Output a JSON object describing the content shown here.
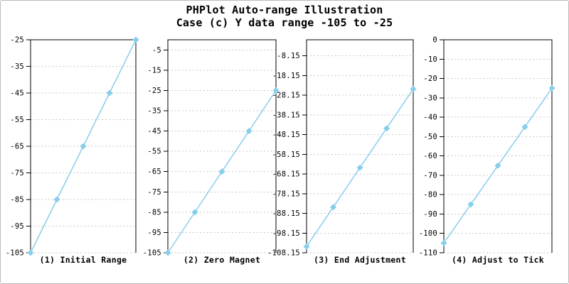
{
  "title": {
    "line1": "PHPlot Auto-range Illustration",
    "line2": "Case (c) Y data range -105 to -25"
  },
  "colors": {
    "line": "#87CEEB",
    "marker": "#87CEEB",
    "grid": "#C8C8C8",
    "axis": "#000000",
    "text": "#000000",
    "background": "#FFFFFF",
    "border": "#B9B9B9"
  },
  "chart_data": [
    {
      "type": "line",
      "title": "(1) Initial Range",
      "values": [
        -105,
        -85,
        -65,
        -45,
        -25
      ],
      "ylim": [
        -105,
        -25
      ],
      "yticks": [
        -25,
        -35,
        -45,
        -55,
        -65,
        -75,
        -85,
        -95,
        -105
      ],
      "xlabel": "",
      "ylabel": "",
      "grid": "horizontal-dashed",
      "marker": "diamond",
      "legend": null
    },
    {
      "type": "line",
      "title": "(2) Zero Magnet",
      "values": [
        -105,
        -85,
        -65,
        -45,
        -25
      ],
      "ylim": [
        -105,
        0
      ],
      "yticks": [
        -5,
        -15,
        -25,
        -35,
        -45,
        -55,
        -65,
        -75,
        -85,
        -95,
        -105
      ],
      "xlabel": "",
      "ylabel": "",
      "grid": "horizontal-dashed",
      "marker": "diamond",
      "legend": null
    },
    {
      "type": "line",
      "title": "(3) End Adjustment",
      "values": [
        -105,
        -85,
        -65,
        -45,
        -25
      ],
      "ylim": [
        -108.15,
        0
      ],
      "yticks": [
        -8.15,
        -18.15,
        -28.15,
        -38.15,
        -48.15,
        -58.15,
        -68.15,
        -78.15,
        -88.15,
        -98.15,
        -108.15
      ],
      "xlabel": "",
      "ylabel": "",
      "grid": "horizontal-dashed",
      "marker": "diamond",
      "legend": null
    },
    {
      "type": "line",
      "title": "(4) Adjust to Tick",
      "values": [
        -105,
        -85,
        -65,
        -45,
        -25
      ],
      "ylim": [
        -110,
        0
      ],
      "yticks": [
        0,
        -10,
        -20,
        -30,
        -40,
        -50,
        -60,
        -70,
        -80,
        -90,
        -100,
        -110
      ],
      "xlabel": "",
      "ylabel": "",
      "grid": "horizontal-dashed",
      "marker": "diamond",
      "legend": null
    }
  ]
}
